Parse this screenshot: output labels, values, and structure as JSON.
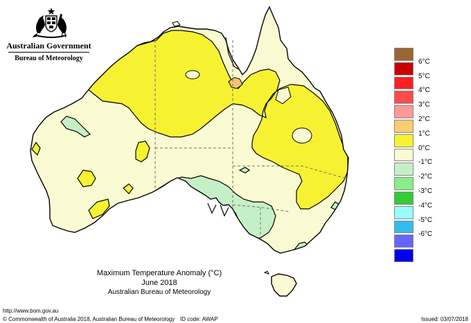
{
  "header": {
    "government": "Australian Government",
    "bureau": "Bureau of Meteorology"
  },
  "map": {
    "title": "Maximum Temperature Anomaly (°C)",
    "period": "June 2018",
    "source": "Australian Bureau of Meteorology",
    "colors": {
      "band_0_1": "#fafad2",
      "band_1_2": "#f6f232",
      "band_2_3": "#f8c272",
      "band_neg1_0": "#c5f0c7",
      "water": "#ffffff",
      "contour": "#000000",
      "state_border": "#707070"
    }
  },
  "legend": {
    "items": [
      {
        "label": "",
        "color": "#996633"
      },
      {
        "label": "6°C",
        "color": "#cc0000"
      },
      {
        "label": "5°C",
        "color": "#ff2020"
      },
      {
        "label": "4°C",
        "color": "#ff4b4b"
      },
      {
        "label": "3°C",
        "color": "#ff9999"
      },
      {
        "label": "2°C",
        "color": "#fdcb70"
      },
      {
        "label": "1°C",
        "color": "#f6f232"
      },
      {
        "label": "0°C",
        "color": "#fafad2"
      },
      {
        "label": "-1°C",
        "color": "#c5f0c7"
      },
      {
        "label": "-2°C",
        "color": "#88ee88"
      },
      {
        "label": "-3°C",
        "color": "#33cc33"
      },
      {
        "label": "-4°C",
        "color": "#99ffff"
      },
      {
        "label": "-5°C",
        "color": "#33bbee"
      },
      {
        "label": "-6°C",
        "color": "#6666ff"
      },
      {
        "label": "",
        "color": "#0000ee"
      }
    ]
  },
  "footer": {
    "url": "http://www.bom.gov.au",
    "copyright": "© Commonwealth of Australia 2018, Australian Bureau of Meteorology",
    "id_code": "ID code: AWAP",
    "issued": "Issued: 03/07/2018"
  }
}
